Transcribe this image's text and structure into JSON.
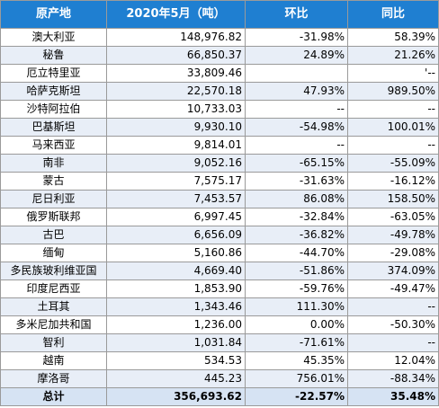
{
  "headers": [
    "原产地",
    "2020年5月（吨）",
    "环比",
    "同比"
  ],
  "rows": [
    [
      "澳大利亚",
      "148,976.82",
      "-31.98%",
      "58.39%"
    ],
    [
      "秘鲁",
      "66,850.37",
      "24.89%",
      "21.26%"
    ],
    [
      "厄立特里亚",
      "33,809.46",
      "",
      "'--"
    ],
    [
      "哈萨克斯坦",
      "22,570.18",
      "47.93%",
      "989.50%"
    ],
    [
      "沙特阿拉伯",
      "10,733.03",
      "--",
      "--"
    ],
    [
      "巴基斯坦",
      "9,930.10",
      "-54.98%",
      "100.01%"
    ],
    [
      "马来西亚",
      "9,814.01",
      "--",
      "--"
    ],
    [
      "南非",
      "9,052.16",
      "-65.15%",
      "-55.09%"
    ],
    [
      "蒙古",
      "7,575.17",
      "-31.63%",
      "-16.12%"
    ],
    [
      "尼日利亚",
      "7,453.57",
      "86.08%",
      "158.50%"
    ],
    [
      "俄罗斯联邦",
      "6,997.45",
      "-32.84%",
      "-63.05%"
    ],
    [
      "古巴",
      "6,656.09",
      "-36.82%",
      "-49.78%"
    ],
    [
      "缅甸",
      "5,160.86",
      "-44.70%",
      "-29.08%"
    ],
    [
      "多民族玻利维亚国",
      "4,669.40",
      "-51.86%",
      "374.09%"
    ],
    [
      "印度尼西亚",
      "1,853.90",
      "-59.76%",
      "-49.47%"
    ],
    [
      "土耳其",
      "1,343.46",
      "111.30%",
      "--"
    ],
    [
      "多米尼加共和国",
      "1,236.00",
      "0.00%",
      "-50.30%"
    ],
    [
      "智利",
      "1,031.84",
      "-71.61%",
      "--"
    ],
    [
      "越南",
      "534.53",
      "45.35%",
      "12.04%"
    ],
    [
      "摩洛哥",
      "445.23",
      "756.01%",
      "-88.34%"
    ]
  ],
  "total": [
    "总计",
    "356,693.62",
    "-22.57%",
    "35.48%"
  ]
}
